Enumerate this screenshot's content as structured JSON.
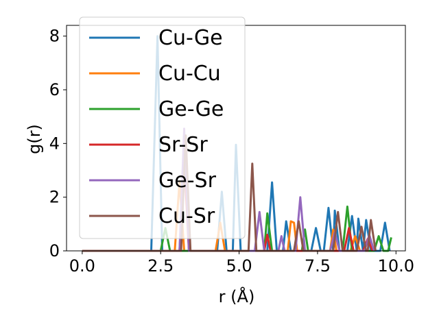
{
  "chart_data": {
    "type": "line",
    "title": "",
    "xlabel": "r (Å)",
    "ylabel": "g(r)",
    "xlim": [
      -0.5,
      10.3
    ],
    "ylim": [
      0,
      8.4
    ],
    "x_ticks": [
      0.0,
      2.5,
      5.0,
      7.5,
      10.0
    ],
    "x_tick_labels": [
      "0.0",
      "2.5",
      "5.0",
      "7.5",
      "10.0"
    ],
    "y_ticks": [
      0,
      2,
      4,
      6,
      8
    ],
    "y_tick_labels": [
      "0",
      "2",
      "4",
      "6",
      "8"
    ],
    "grid": false,
    "legend_position": "top-left",
    "series": [
      {
        "name": "Cu-Ge",
        "color": "#1f77b4",
        "points": [
          [
            0,
            0
          ],
          [
            2.2,
            0
          ],
          [
            2.4,
            8.0
          ],
          [
            2.55,
            0
          ],
          [
            4.3,
            0
          ],
          [
            4.45,
            2.2
          ],
          [
            4.6,
            0
          ],
          [
            4.8,
            0
          ],
          [
            4.9,
            3.95
          ],
          [
            5.05,
            0
          ],
          [
            5.9,
            0
          ],
          [
            6.05,
            2.55
          ],
          [
            6.2,
            0
          ],
          [
            6.4,
            0
          ],
          [
            6.5,
            1.1
          ],
          [
            6.65,
            0
          ],
          [
            7.3,
            0
          ],
          [
            7.45,
            0.85
          ],
          [
            7.6,
            0
          ],
          [
            7.7,
            0
          ],
          [
            7.85,
            1.6
          ],
          [
            8.0,
            0
          ],
          [
            8.05,
            1.5
          ],
          [
            8.2,
            0
          ],
          [
            8.45,
            0
          ],
          [
            8.6,
            1.3
          ],
          [
            8.75,
            0
          ],
          [
            8.8,
            1.2
          ],
          [
            8.95,
            0
          ],
          [
            9.05,
            1.15
          ],
          [
            9.2,
            0
          ],
          [
            9.5,
            0
          ],
          [
            9.65,
            1.05
          ],
          [
            9.8,
            0
          ]
        ]
      },
      {
        "name": "Cu-Cu",
        "color": "#ff7f0e",
        "points": [
          [
            0,
            0
          ],
          [
            2.95,
            0
          ],
          [
            3.1,
            2.6
          ],
          [
            3.25,
            0
          ],
          [
            4.25,
            0
          ],
          [
            4.4,
            1.05
          ],
          [
            4.55,
            0
          ],
          [
            6.55,
            0
          ],
          [
            6.65,
            1.1
          ],
          [
            6.75,
            1.05
          ],
          [
            6.85,
            0
          ],
          [
            7.9,
            0
          ],
          [
            8.0,
            0.8
          ],
          [
            8.1,
            0
          ],
          [
            8.55,
            0
          ],
          [
            8.7,
            0.55
          ],
          [
            8.85,
            0
          ]
        ]
      },
      {
        "name": "Ge-Ge",
        "color": "#2ca02c",
        "points": [
          [
            0,
            0
          ],
          [
            2.5,
            0
          ],
          [
            2.65,
            0.85
          ],
          [
            2.8,
            0
          ],
          [
            5.8,
            0
          ],
          [
            5.9,
            1.4
          ],
          [
            6.05,
            0
          ],
          [
            7.0,
            0
          ],
          [
            7.1,
            0.8
          ],
          [
            7.2,
            0
          ],
          [
            8.3,
            0
          ],
          [
            8.45,
            1.65
          ],
          [
            8.6,
            0
          ],
          [
            9.3,
            0
          ],
          [
            9.45,
            0.55
          ],
          [
            9.6,
            0
          ],
          [
            9.75,
            0
          ],
          [
            9.85,
            0.5
          ]
        ]
      },
      {
        "name": "Sr-Sr",
        "color": "#d62728",
        "points": [
          [
            0,
            0
          ],
          [
            3.1,
            0
          ],
          [
            3.25,
            3.45
          ],
          [
            3.4,
            0
          ],
          [
            5.8,
            0
          ],
          [
            5.9,
            0.6
          ],
          [
            6.0,
            0
          ],
          [
            8.35,
            0
          ],
          [
            8.5,
            0.85
          ],
          [
            8.65,
            0
          ],
          [
            8.95,
            0
          ],
          [
            9.1,
            0.45
          ],
          [
            9.25,
            0
          ]
        ]
      },
      {
        "name": "Ge-Sr",
        "color": "#9467bd",
        "points": [
          [
            0,
            0
          ],
          [
            3.1,
            0
          ],
          [
            3.25,
            4.55
          ],
          [
            3.4,
            0
          ],
          [
            5.5,
            0
          ],
          [
            5.65,
            1.45
          ],
          [
            5.8,
            0
          ],
          [
            6.25,
            0
          ],
          [
            6.35,
            0.55
          ],
          [
            6.45,
            0
          ],
          [
            6.8,
            0
          ],
          [
            6.95,
            2.0
          ],
          [
            7.1,
            0
          ],
          [
            7.9,
            0
          ],
          [
            8.05,
            0.7
          ],
          [
            8.2,
            0
          ],
          [
            9.0,
            0
          ],
          [
            9.15,
            0.6
          ],
          [
            9.3,
            0
          ]
        ]
      },
      {
        "name": "Cu-Sr",
        "color": "#8c564b",
        "points": [
          [
            0,
            0
          ],
          [
            3.15,
            0
          ],
          [
            3.3,
            4.3
          ],
          [
            3.45,
            0
          ],
          [
            5.3,
            0
          ],
          [
            5.42,
            3.25
          ],
          [
            5.55,
            0
          ],
          [
            6.75,
            0
          ],
          [
            6.9,
            1.1
          ],
          [
            7.05,
            0
          ],
          [
            8.0,
            0
          ],
          [
            8.15,
            1.45
          ],
          [
            8.3,
            0
          ],
          [
            8.75,
            0
          ],
          [
            8.9,
            0.9
          ],
          [
            9.05,
            0
          ],
          [
            9.1,
            0
          ],
          [
            9.2,
            1.15
          ],
          [
            9.35,
            0
          ]
        ]
      }
    ]
  }
}
